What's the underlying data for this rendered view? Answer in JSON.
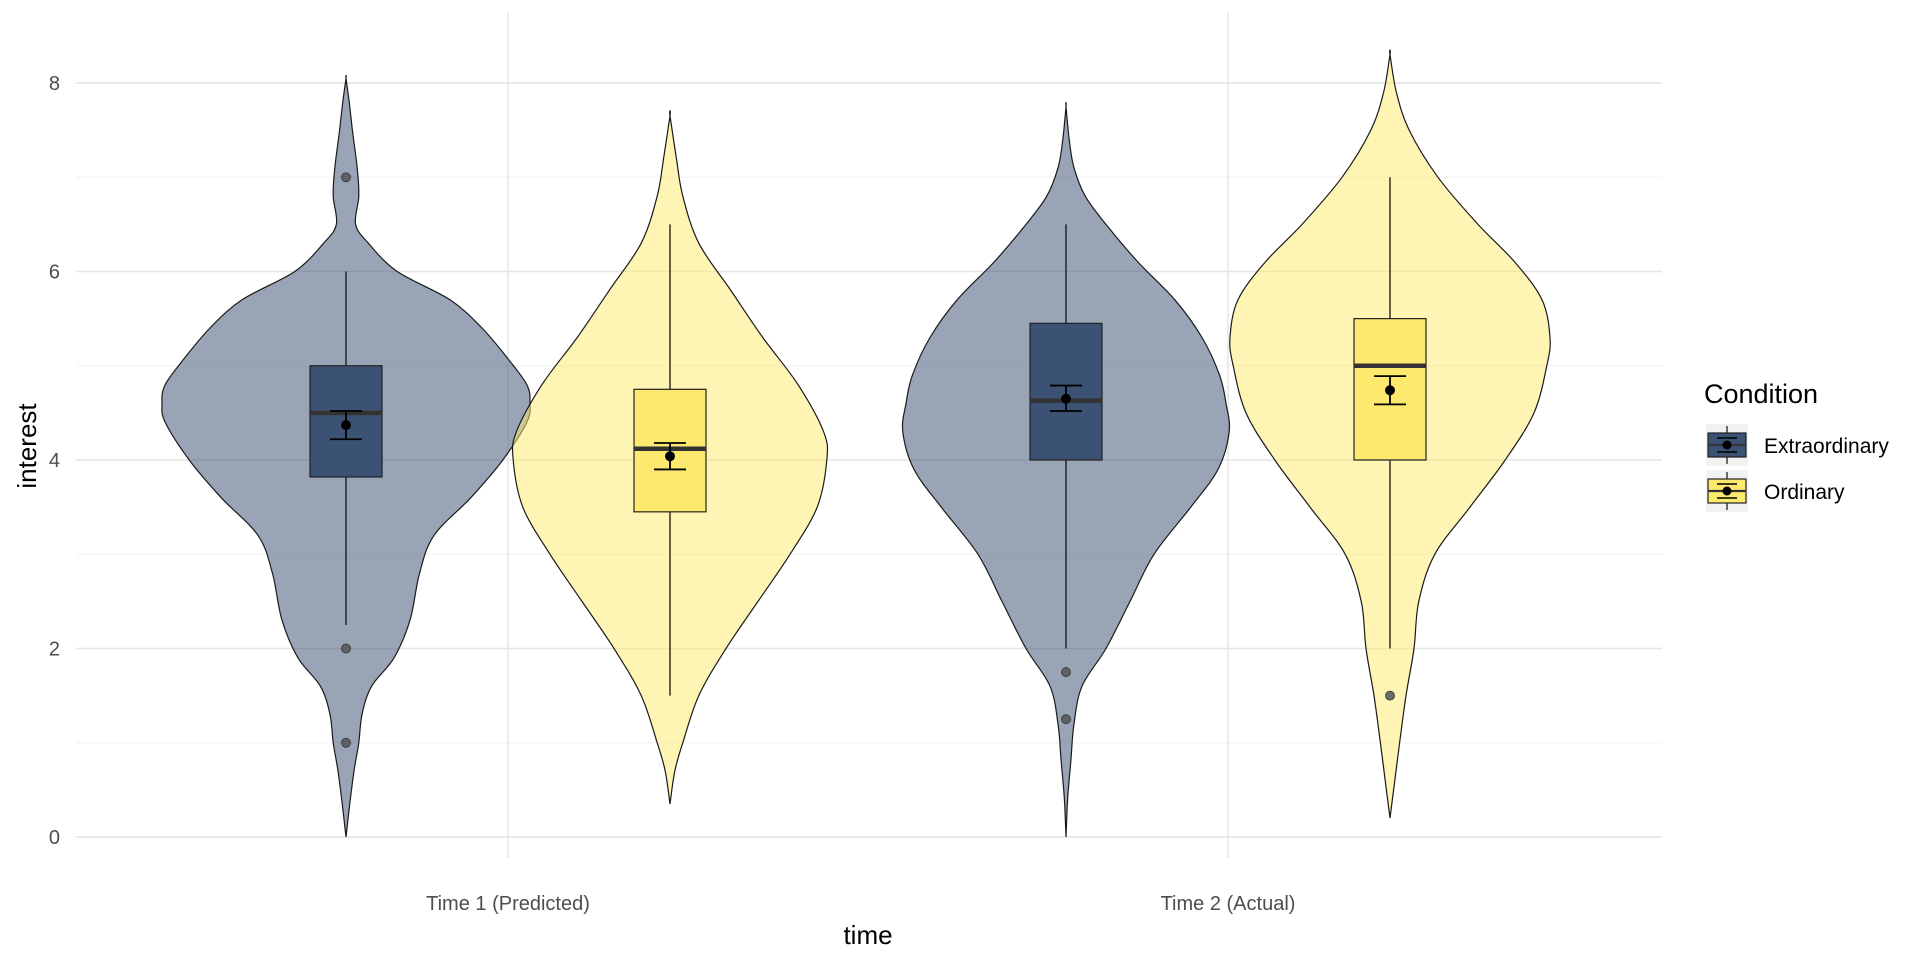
{
  "chart_data": {
    "type": "violin",
    "title": "",
    "xlabel": "time",
    "ylabel": "interest",
    "categories": [
      "Time 1 (Predicted)",
      "Time 2 (Actual)"
    ],
    "y_ticks": [
      "0",
      "2",
      "4",
      "6",
      "8"
    ],
    "ylim": [
      0,
      8.5
    ],
    "grid": true,
    "legend": {
      "title": "Condition",
      "placement": "right"
    },
    "series": [
      {
        "name": "Extraordinary",
        "color": "#3b5275",
        "groups": [
          {
            "category": "Time 1 (Predicted)",
            "q1": 3.82,
            "median": 4.5,
            "q3": 5.0,
            "whisker_low": 2.25,
            "whisker_high": 6.0,
            "mean": 4.37,
            "ci_low": 4.22,
            "ci_high": 4.52,
            "outliers": [
              7.0,
              2.0,
              1.0
            ],
            "density": [
              [
                0.0,
                0.0
              ],
              [
                0.3,
                0.02
              ],
              [
                0.7,
                0.05
              ],
              [
                1.0,
                0.08
              ],
              [
                1.3,
                0.1
              ],
              [
                1.6,
                0.16
              ],
              [
                1.9,
                0.3
              ],
              [
                2.3,
                0.4
              ],
              [
                2.8,
                0.46
              ],
              [
                3.2,
                0.55
              ],
              [
                3.6,
                0.78
              ],
              [
                4.0,
                0.98
              ],
              [
                4.4,
                1.13
              ],
              [
                4.6,
                1.15
              ],
              [
                4.8,
                1.13
              ],
              [
                5.1,
                1.0
              ],
              [
                5.4,
                0.85
              ],
              [
                5.7,
                0.65
              ],
              [
                6.0,
                0.32
              ],
              [
                6.3,
                0.14
              ],
              [
                6.5,
                0.06
              ],
              [
                6.8,
                0.08
              ],
              [
                7.1,
                0.07
              ],
              [
                7.5,
                0.04
              ],
              [
                7.8,
                0.02
              ],
              [
                8.05,
                0.0
              ]
            ]
          },
          {
            "category": "Time 2 (Actual)",
            "q1": 4.0,
            "median": 4.63,
            "q3": 5.45,
            "whisker_low": 2.0,
            "whisker_high": 6.5,
            "mean": 4.65,
            "ci_low": 4.52,
            "ci_high": 4.79,
            "outliers": [
              1.75,
              1.25
            ],
            "density": [
              [
                0.0,
                0.0
              ],
              [
                0.4,
                0.01
              ],
              [
                0.8,
                0.03
              ],
              [
                1.2,
                0.05
              ],
              [
                1.6,
                0.1
              ],
              [
                2.0,
                0.25
              ],
              [
                2.5,
                0.4
              ],
              [
                3.0,
                0.55
              ],
              [
                3.5,
                0.78
              ],
              [
                3.9,
                0.95
              ],
              [
                4.3,
                1.02
              ],
              [
                4.6,
                1.0
              ],
              [
                4.9,
                0.96
              ],
              [
                5.3,
                0.85
              ],
              [
                5.7,
                0.68
              ],
              [
                6.1,
                0.45
              ],
              [
                6.5,
                0.25
              ],
              [
                6.8,
                0.12
              ],
              [
                7.1,
                0.05
              ],
              [
                7.4,
                0.02
              ],
              [
                7.75,
                0.0
              ]
            ]
          }
        ]
      },
      {
        "name": "Ordinary",
        "color": "#fde96e",
        "groups": [
          {
            "category": "Time 1 (Predicted)",
            "q1": 3.45,
            "median": 4.12,
            "q3": 4.75,
            "whisker_low": 1.5,
            "whisker_high": 6.5,
            "mean": 4.04,
            "ci_low": 3.9,
            "ci_high": 4.18,
            "outliers": [],
            "density": [
              [
                0.35,
                0.0
              ],
              [
                0.7,
                0.03
              ],
              [
                1.0,
                0.08
              ],
              [
                1.5,
                0.18
              ],
              [
                2.0,
                0.35
              ],
              [
                2.5,
                0.55
              ],
              [
                3.0,
                0.75
              ],
              [
                3.5,
                0.92
              ],
              [
                4.0,
                0.98
              ],
              [
                4.3,
                0.96
              ],
              [
                4.8,
                0.8
              ],
              [
                5.3,
                0.58
              ],
              [
                5.8,
                0.38
              ],
              [
                6.3,
                0.18
              ],
              [
                6.8,
                0.08
              ],
              [
                7.2,
                0.04
              ],
              [
                7.65,
                0.0
              ]
            ]
          },
          {
            "category": "Time 2 (Actual)",
            "q1": 4.0,
            "median": 5.0,
            "q3": 5.5,
            "whisker_low": 2.0,
            "whisker_high": 7.0,
            "mean": 4.74,
            "ci_low": 4.59,
            "ci_high": 4.89,
            "outliers": [
              1.5
            ],
            "density": [
              [
                0.2,
                0.0
              ],
              [
                0.6,
                0.03
              ],
              [
                1.0,
                0.06
              ],
              [
                1.5,
                0.1
              ],
              [
                2.0,
                0.15
              ],
              [
                2.5,
                0.18
              ],
              [
                3.0,
                0.28
              ],
              [
                3.5,
                0.5
              ],
              [
                4.0,
                0.72
              ],
              [
                4.5,
                0.9
              ],
              [
                5.0,
                0.98
              ],
              [
                5.3,
                1.0
              ],
              [
                5.7,
                0.95
              ],
              [
                6.1,
                0.78
              ],
              [
                6.5,
                0.55
              ],
              [
                7.0,
                0.3
              ],
              [
                7.5,
                0.12
              ],
              [
                7.9,
                0.04
              ],
              [
                8.3,
                0.0
              ]
            ]
          }
        ]
      }
    ]
  }
}
